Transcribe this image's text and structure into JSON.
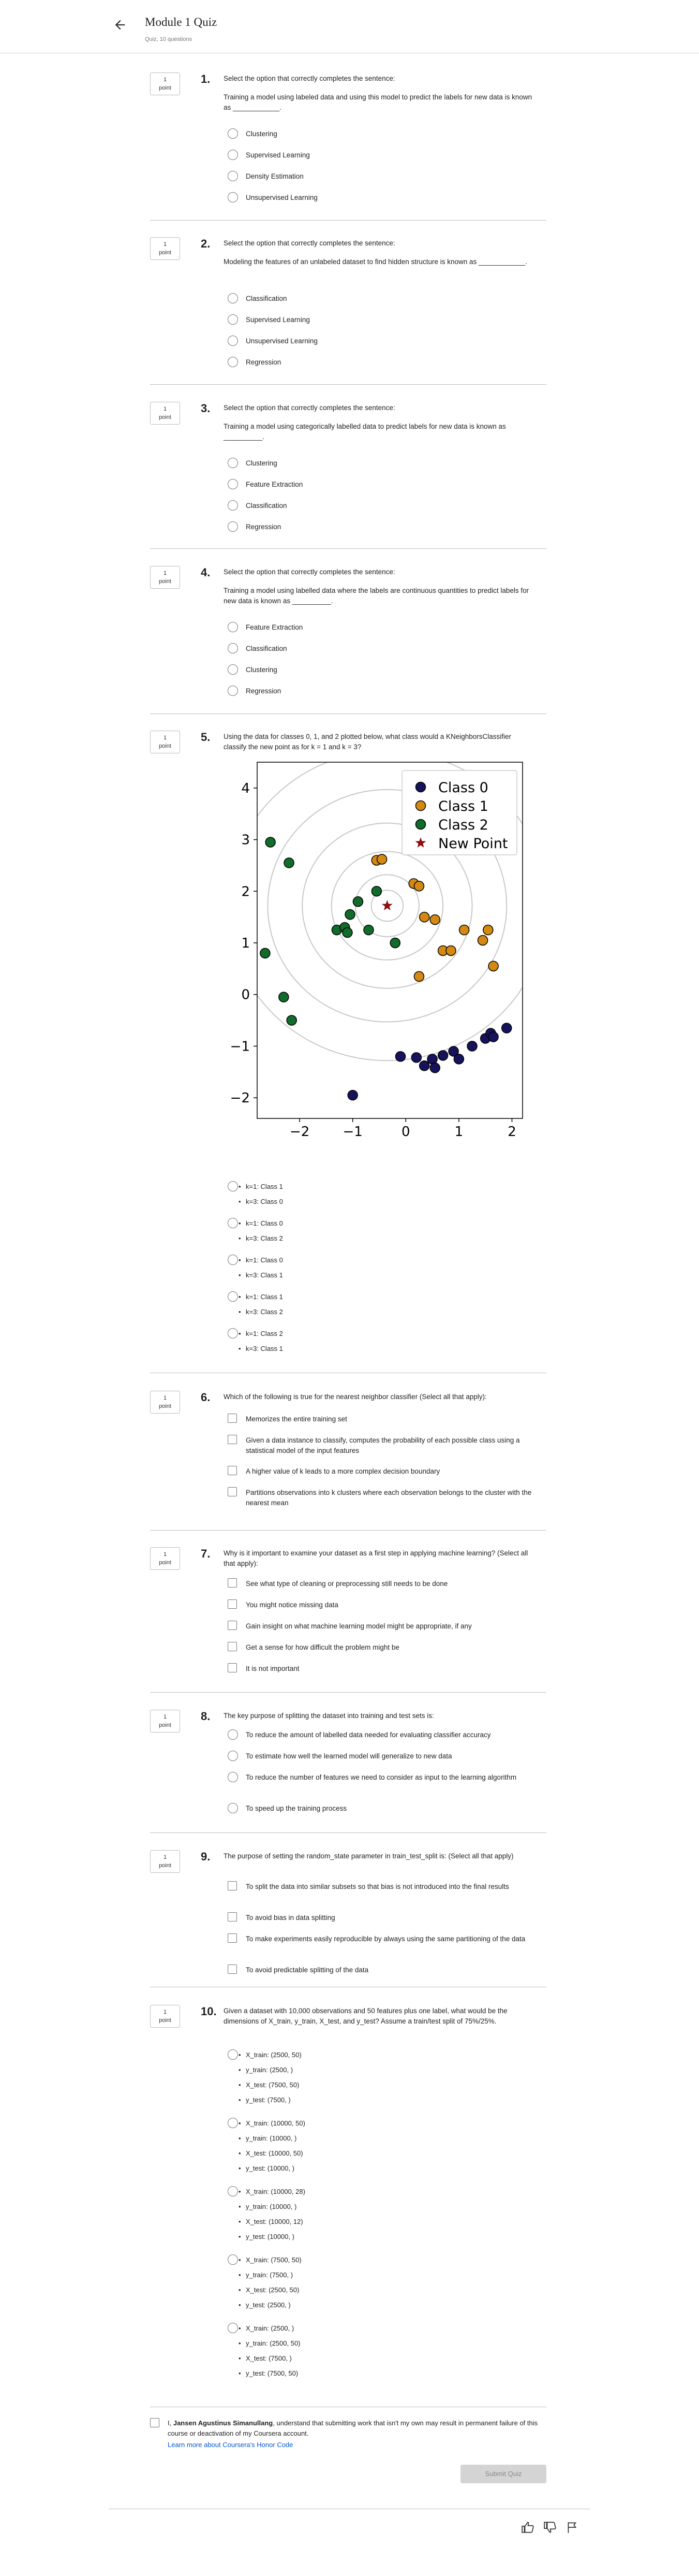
{
  "header": {
    "title": "Module 1 Quiz",
    "subtitle": "Quiz, 10 questions"
  },
  "point_label": [
    "1",
    "point"
  ],
  "questions": [
    {
      "num": "1.",
      "prompt": "Select the option that correctly completes the sentence:",
      "text": "Training a model using labeled data and using this model to predict the labels for new data is known as ____________.",
      "options": [
        "Clustering",
        "Supervised Learning",
        "Density Estimation",
        "Unsupervised Learning"
      ]
    },
    {
      "num": "2.",
      "prompt": "Select the option that correctly completes the sentence:",
      "text": "Modeling the features of an unlabeled dataset to find hidden structure is known as ____________.",
      "options": [
        "Classification",
        "Supervised Learning",
        "Unsupervised Learning",
        "Regression"
      ]
    },
    {
      "num": "3.",
      "prompt": "Select the option that correctly completes the sentence:",
      "text": "Training a model using categorically labelled data to predict labels for new data is known as __________.",
      "options": [
        "Clustering",
        "Feature Extraction",
        "Classification",
        "Regression"
      ]
    },
    {
      "num": "4.",
      "prompt": "Select the option that correctly completes the sentence:",
      "text": "Training a model using labelled data where the labels are continuous quantities to predict labels for new data is known as __________.",
      "options": [
        "Feature Extraction",
        "Classification",
        "Clustering",
        "Regression"
      ]
    },
    {
      "num": "5.",
      "prompt": "Using the data for classes 0, 1, and 2 plotted below, what class would a KNeighborsClassifier classify the new point as for k = 1 and k = 3?",
      "options": [
        [
          "k=1: Class 1",
          "k=3: Class 0"
        ],
        [
          "k=1: Class 0",
          "k=3: Class 2"
        ],
        [
          "k=1: Class 0",
          "k=3: Class 1"
        ],
        [
          "k=1: Class 1",
          "k=3: Class 2"
        ],
        [
          "k=1: Class 2",
          "k=3: Class 1"
        ]
      ]
    },
    {
      "num": "6.",
      "prompt": "Which of the following is true for the nearest neighbor classifier (Select all that apply):",
      "options": [
        "Memorizes the entire training set",
        "Given a data instance to classify, computes the probability of each possible class using a statistical model of the input features",
        "A higher value of k leads to a more complex decision boundary",
        "Partitions observations into k clusters where each observation belongs to the cluster with the nearest mean"
      ]
    },
    {
      "num": "7.",
      "prompt": "Why is it important to examine your dataset as a first step in applying machine learning? (Select all that apply):",
      "options": [
        "See what type of cleaning or preprocessing still needs to be done",
        "You might notice missing data",
        "Gain insight on what machine learning model might be appropriate, if any",
        "Get a sense for how difficult the problem might be",
        "It is not important"
      ]
    },
    {
      "num": "8.",
      "prompt": "The key purpose of splitting the dataset into training and test sets is:",
      "options": [
        "To reduce the amount of labelled data needed for evaluating classifier accuracy",
        "To estimate how well the learned model will generalize to new data",
        "To reduce the number of features we need to consider as input to the learning algorithm",
        "To speed up the training process"
      ]
    },
    {
      "num": "9.",
      "prompt": "The purpose of setting the random_state parameter in train_test_split is: (Select all that apply)",
      "options": [
        "To split the data into similar subsets so that bias is not introduced into the final results",
        "To avoid bias in data splitting",
        "To make experiments easily reproducible by always using the same partitioning of the data",
        "To avoid predictable splitting of the data"
      ]
    },
    {
      "num": "10.",
      "prompt": "Given a dataset with 10,000 observations and 50 features plus one label, what would be the dimensions of X_train, y_train, X_test, and y_test? Assume a train/test split of 75%/25%.",
      "options": [
        [
          "X_train: (2500, 50)",
          "y_train: (2500, )",
          "X_test: (7500, 50)",
          "y_test: (7500, )"
        ],
        [
          "X_train: (10000, 50)",
          "y_train: (10000, )",
          "X_test: (10000, 50)",
          "y_test: (10000, )"
        ],
        [
          "X_train: (10000, 28)",
          "y_train: (10000, )",
          "X_test: (10000, 12)",
          "y_test: (10000, )"
        ],
        [
          "X_train: (7500, 50)",
          "y_train: (7500, )",
          "X_test: (2500, 50)",
          "y_test: (2500, )"
        ],
        [
          "X_train: (2500, )",
          "y_train: (2500, 50)",
          "X_test: (7500, )",
          "y_test: (7500, 50)"
        ]
      ]
    }
  ],
  "honor": {
    "prefix": "I, ",
    "name": "Jansen Agustinus Simanullang",
    "suffix": ", understand that submitting work that isn't my own may result in permanent failure of this course or deactivation of my Coursera account.",
    "link": "Learn more about Coursera's Honor Code"
  },
  "submit_label": "Submit Quiz",
  "icons": {
    "back": "arrow-left-icon",
    "like": "thumbs-up-icon",
    "dislike": "thumbs-down-icon",
    "flag": "flag-icon"
  },
  "chart_data": {
    "type": "scatter",
    "xlim": [
      -2.8,
      2.2
    ],
    "ylim": [
      -2.4,
      4.5
    ],
    "xticks": [
      "−2",
      "−1",
      "0",
      "1",
      "2"
    ],
    "xtick_values": [
      -2,
      -1,
      0,
      1,
      2
    ],
    "yticks": [
      "−2",
      "−1",
      "0",
      "1",
      "2",
      "3",
      "4"
    ],
    "ytick_values": [
      -2,
      -1,
      0,
      1,
      2,
      3,
      4
    ],
    "legend_position": "top-right",
    "colors": {
      "class0": "#16135c",
      "class1": "#d48a12",
      "class2": "#116b2a",
      "new": "#8b0d0d",
      "rings": "#c8c8c8"
    },
    "new_point": {
      "name": "New Point",
      "x": -0.35,
      "y": 1.72
    },
    "series": [
      {
        "name": "Class 0",
        "points": [
          [
            -1.0,
            -1.95
          ],
          [
            -0.1,
            -1.2
          ],
          [
            0.2,
            -1.22
          ],
          [
            0.35,
            -1.38
          ],
          [
            0.5,
            -1.25
          ],
          [
            0.55,
            -1.42
          ],
          [
            0.7,
            -1.18
          ],
          [
            0.9,
            -1.1
          ],
          [
            1.0,
            -1.25
          ],
          [
            1.25,
            -1.0
          ],
          [
            1.5,
            -0.85
          ],
          [
            1.6,
            -0.75
          ],
          [
            1.65,
            -0.82
          ],
          [
            1.9,
            -0.65
          ]
        ]
      },
      {
        "name": "Class 1",
        "points": [
          [
            -0.55,
            2.6
          ],
          [
            -0.45,
            2.62
          ],
          [
            0.15,
            2.15
          ],
          [
            0.25,
            2.1
          ],
          [
            0.35,
            1.5
          ],
          [
            0.55,
            1.45
          ],
          [
            0.7,
            0.85
          ],
          [
            0.85,
            0.85
          ],
          [
            1.1,
            1.25
          ],
          [
            1.45,
            1.05
          ],
          [
            1.55,
            1.25
          ],
          [
            1.65,
            0.55
          ],
          [
            0.25,
            0.35
          ]
        ]
      },
      {
        "name": "Class 2",
        "points": [
          [
            -2.55,
            2.95
          ],
          [
            -2.2,
            2.55
          ],
          [
            -2.15,
            -0.5
          ],
          [
            -2.3,
            -0.05
          ],
          [
            -2.65,
            0.8
          ],
          [
            -1.3,
            1.25
          ],
          [
            -1.15,
            1.3
          ],
          [
            -1.05,
            1.55
          ],
          [
            -0.9,
            1.8
          ],
          [
            -0.55,
            2.0
          ],
          [
            -0.7,
            1.25
          ],
          [
            -1.1,
            1.2
          ],
          [
            -0.2,
            1.0
          ]
        ]
      }
    ],
    "ring_radii": [
      0.3,
      0.6,
      1.05,
      1.6,
      2.25,
      3.0
    ]
  }
}
